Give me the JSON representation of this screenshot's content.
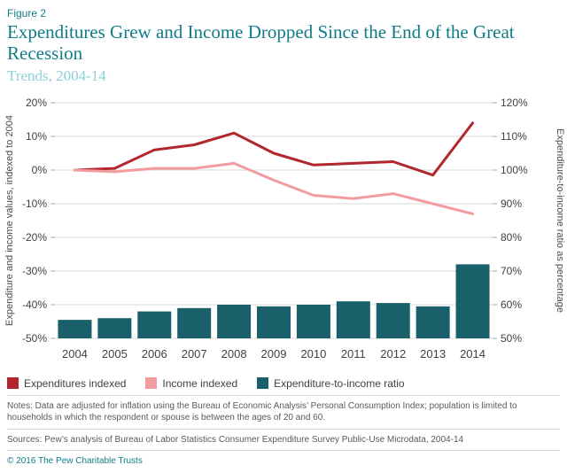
{
  "figure_label": "Figure 2",
  "title": "Expenditures Grew and Income Dropped Since the End of the Great Recession",
  "subtitle": "Trends, 2004-14",
  "chart_data": {
    "type": "combo",
    "categories": [
      "2004",
      "2005",
      "2006",
      "2007",
      "2008",
      "2009",
      "2010",
      "2011",
      "2012",
      "2013",
      "2014"
    ],
    "left_axis": {
      "label": "Expenditure and income values, indexed to 2004",
      "ticks": [
        "20%",
        "10%",
        "0%",
        "-10%",
        "-20%",
        "-30%",
        "-40%",
        "-50%"
      ],
      "min": -50,
      "max": 20
    },
    "right_axis": {
      "label": "Expenditure-to-income ratio as percentage",
      "ticks": [
        "120%",
        "110%",
        "100%",
        "90%",
        "80%",
        "70%",
        "60%",
        "50%"
      ],
      "min": 50,
      "max": 120
    },
    "grid": true,
    "legend_position": "bottom",
    "series": [
      {
        "name": "Expenditures indexed",
        "type": "line",
        "axis": "left",
        "color": "#b2272d",
        "values": [
          0,
          0.5,
          6,
          7.5,
          11,
          5,
          1.5,
          2,
          2.5,
          -1.5,
          14
        ]
      },
      {
        "name": "Income indexed",
        "type": "line",
        "axis": "left",
        "color": "#f29ba1",
        "values": [
          0,
          -0.5,
          0.5,
          0.5,
          2,
          -3,
          -7.5,
          -8.5,
          -7,
          -10,
          -13
        ]
      },
      {
        "name": "Expenditure-to-income ratio",
        "type": "bar",
        "axis": "right",
        "color": "#19606a",
        "values": [
          55.5,
          56,
          58,
          59,
          60,
          59.5,
          60,
          61,
          60.5,
          59.5,
          72
        ]
      }
    ]
  },
  "notes": "Notes: Data are adjusted for inflation using the Bureau of Economic Analysis’ Personal Consumption Index; population is limited to households in which the respondent or spouse is between the ages of 20 and 60.",
  "sources": "Sources: Pew’s analysis of Bureau of Labor Statistics Consumer Expenditure Survey Public-Use Microdata, 2004-14",
  "copyright": "© 2016 The Pew Charitable Trusts"
}
